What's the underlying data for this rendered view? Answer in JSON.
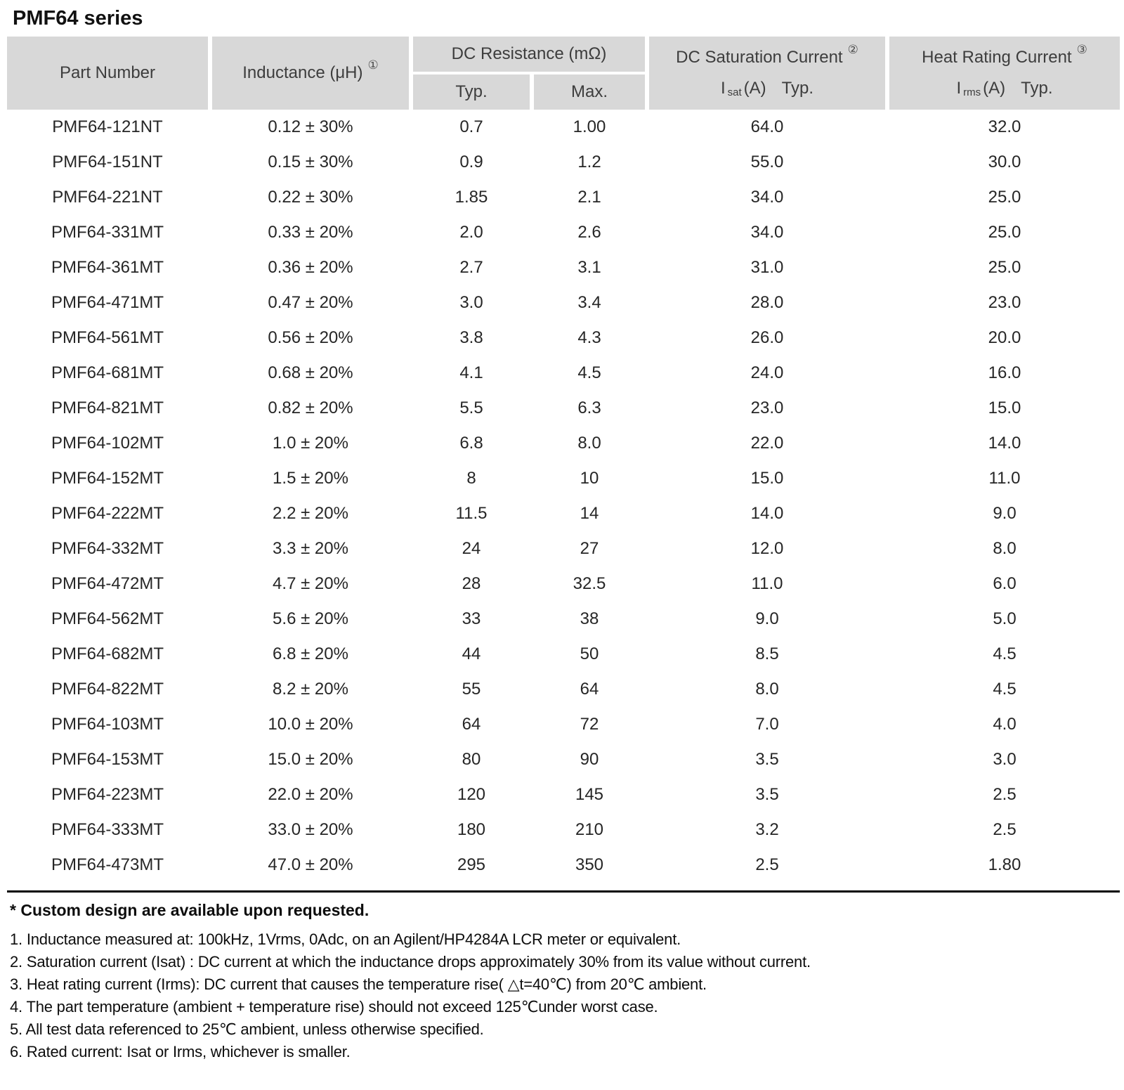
{
  "title": "PMF64 series",
  "colors": {
    "header_bg": "#d8d8d8",
    "rule": "#000000",
    "text": "#262626"
  },
  "table": {
    "headers": {
      "part_number": "Part Number",
      "inductance_label": "Inductance (μH)",
      "inductance_ref": "①",
      "dc_resistance_group": "DC Resistance (mΩ)",
      "typ": "Typ.",
      "max": "Max.",
      "saturation_group": "DC Saturation Current",
      "saturation_ref": "②",
      "saturation_symbol": "I",
      "saturation_sub": "sat",
      "saturation_unit": "(A)",
      "saturation_qual": "Typ.",
      "heat_group": "Heat Rating Current",
      "heat_ref": "③",
      "heat_symbol": "I",
      "heat_sub": "rms",
      "heat_unit": "(A)",
      "heat_qual": "Typ."
    },
    "rows": [
      [
        "PMF64-121NT",
        "0.12 ± 30%",
        "0.7",
        "1.00",
        "64.0",
        "32.0"
      ],
      [
        "PMF64-151NT",
        "0.15 ± 30%",
        "0.9",
        "1.2",
        "55.0",
        "30.0"
      ],
      [
        "PMF64-221NT",
        "0.22 ± 30%",
        "1.85",
        "2.1",
        "34.0",
        "25.0"
      ],
      [
        "PMF64-331MT",
        "0.33 ± 20%",
        "2.0",
        "2.6",
        "34.0",
        "25.0"
      ],
      [
        "PMF64-361MT",
        "0.36 ± 20%",
        "2.7",
        "3.1",
        "31.0",
        "25.0"
      ],
      [
        "PMF64-471MT",
        "0.47 ± 20%",
        "3.0",
        "3.4",
        "28.0",
        "23.0"
      ],
      [
        "PMF64-561MT",
        "0.56 ± 20%",
        "3.8",
        "4.3",
        "26.0",
        "20.0"
      ],
      [
        "PMF64-681MT",
        "0.68 ± 20%",
        "4.1",
        "4.5",
        "24.0",
        "16.0"
      ],
      [
        "PMF64-821MT",
        "0.82 ± 20%",
        "5.5",
        "6.3",
        "23.0",
        "15.0"
      ],
      [
        "PMF64-102MT",
        "1.0 ± 20%",
        "6.8",
        "8.0",
        "22.0",
        "14.0"
      ],
      [
        "PMF64-152MT",
        "1.5 ± 20%",
        "8",
        "10",
        "15.0",
        "11.0"
      ],
      [
        "PMF64-222MT",
        "2.2 ± 20%",
        "11.5",
        "14",
        "14.0",
        "9.0"
      ],
      [
        "PMF64-332MT",
        "3.3 ± 20%",
        "24",
        "27",
        "12.0",
        "8.0"
      ],
      [
        "PMF64-472MT",
        "4.7 ± 20%",
        "28",
        "32.5",
        "11.0",
        "6.0"
      ],
      [
        "PMF64-562MT",
        "5.6 ± 20%",
        "33",
        "38",
        "9.0",
        "5.0"
      ],
      [
        "PMF64-682MT",
        "6.8 ± 20%",
        "44",
        "50",
        "8.5",
        "4.5"
      ],
      [
        "PMF64-822MT",
        "8.2 ± 20%",
        "55",
        "64",
        "8.0",
        "4.5"
      ],
      [
        "PMF64-103MT",
        "10.0 ± 20%",
        "64",
        "72",
        "7.0",
        "4.0"
      ],
      [
        "PMF64-153MT",
        "15.0 ± 20%",
        "80",
        "90",
        "3.5",
        "3.0"
      ],
      [
        "PMF64-223MT",
        "22.0 ± 20%",
        "120",
        "145",
        "3.5",
        "2.5"
      ],
      [
        "PMF64-333MT",
        "33.0 ± 20%",
        "180",
        "210",
        "3.2",
        "2.5"
      ],
      [
        "PMF64-473MT",
        "47.0 ± 20%",
        "295",
        "350",
        "2.5",
        "1.80"
      ]
    ]
  },
  "notes": {
    "custom_bold": "* Custom design are available upon requested.",
    "items": [
      "1. Inductance measured at: 100kHz, 1Vrms, 0Adc, on an Agilent/HP4284A LCR meter or equivalent.",
      "2. Saturation current (Isat) : DC current at which the inductance drops approximately 30% from its value without current.",
      "3. Heat rating current (Irms): DC current that causes the temperature rise( △t=40℃) from 20℃ ambient.",
      "4. The part temperature (ambient + temperature rise) should not exceed 125℃under worst case.",
      "5. All test data referenced to 25℃ ambient, unless otherwise specified.",
      "6. Rated current: Isat or Irms, whichever is smaller."
    ]
  }
}
